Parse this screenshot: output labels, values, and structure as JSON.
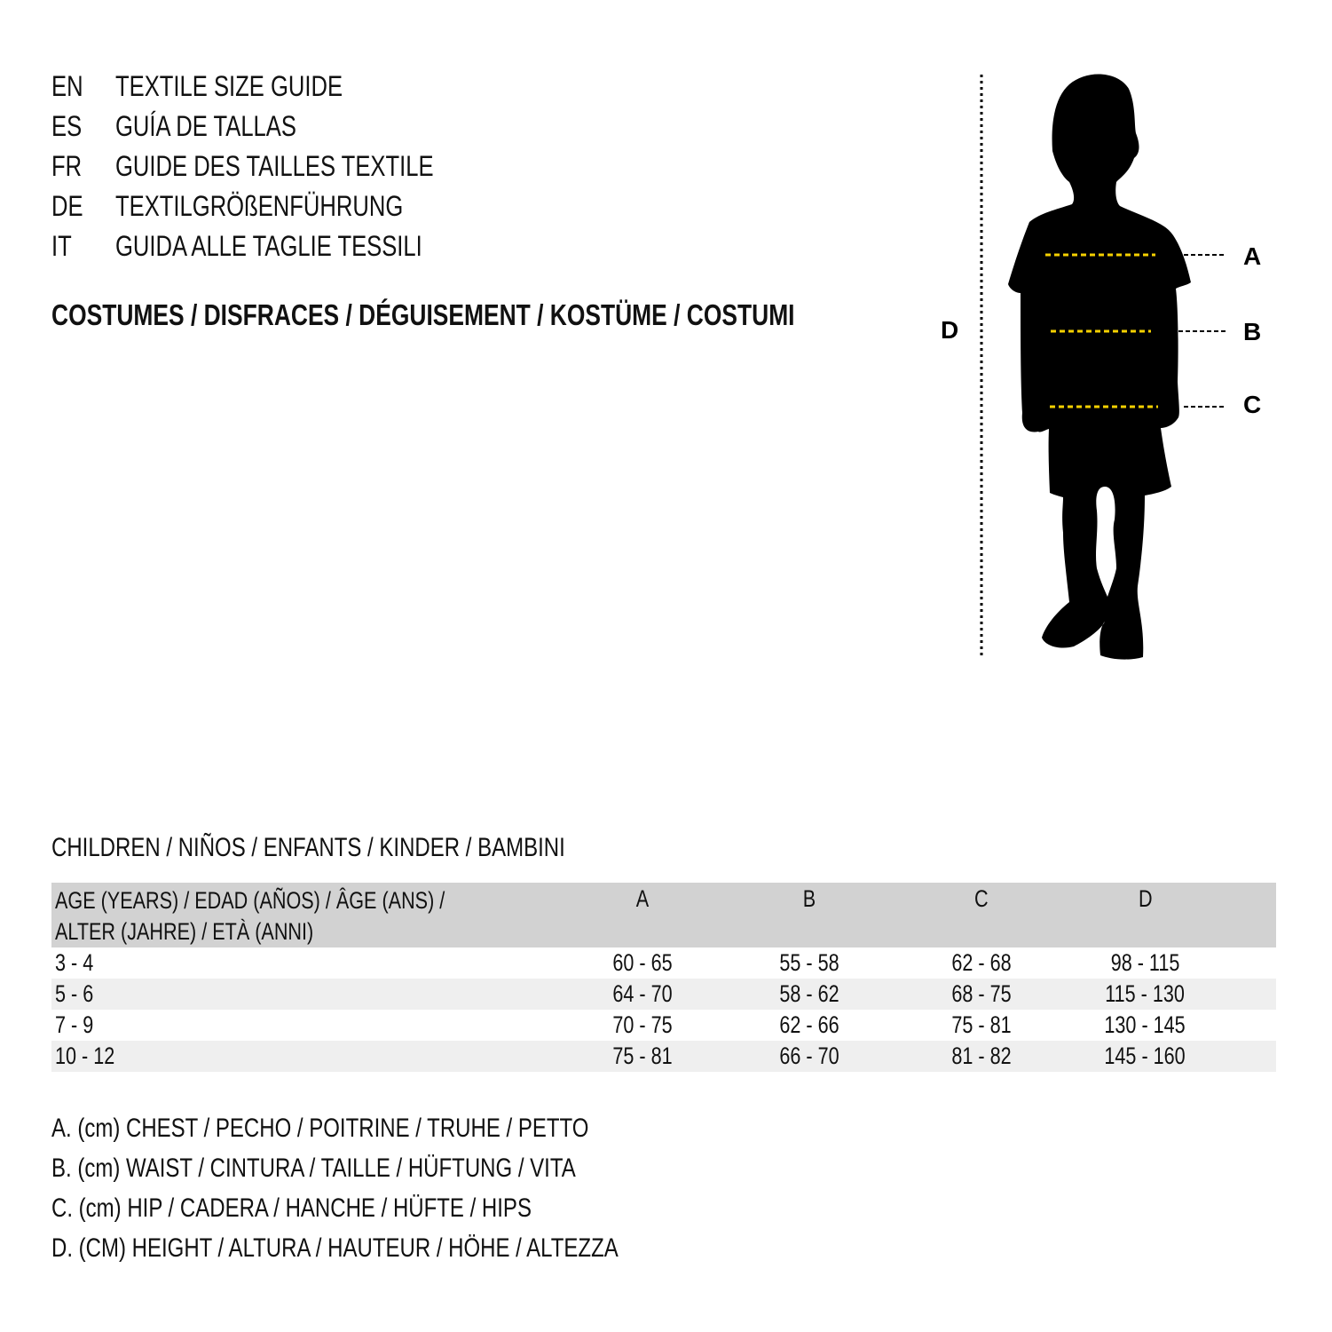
{
  "languages": [
    {
      "code": "EN",
      "title": "TEXTILE SIZE GUIDE"
    },
    {
      "code": "ES",
      "title": "GUÍA DE TALLAS"
    },
    {
      "code": "FR",
      "title": "GUIDE DES TAILLES TEXTILE"
    },
    {
      "code": "DE",
      "title": "TEXTILGRÖßENFÜHRUNG"
    },
    {
      "code": "IT",
      "title": "GUIDA ALLE TAGLIE TESSILI"
    }
  ],
  "category": "COSTUMES / DISFRACES / DÉGUISEMENT / KOSTÜME / COSTUMI",
  "diagram": {
    "labels": {
      "a": "A",
      "b": "B",
      "c": "C",
      "d": "D"
    },
    "silhouette_color": "#000000",
    "measure_line_color": "#f5d000"
  },
  "section_title": "CHILDREN / NIÑOS / ENFANTS / KINDER / BAMBINI",
  "table": {
    "headers": {
      "age_line1": "AGE (YEARS) / EDAD (AÑOS) / ÂGE (ANS) /",
      "age_line2": "ALTER (JAHRE) / ETÀ (ANNI)",
      "a": "A",
      "b": "B",
      "c": "C",
      "d": "D"
    },
    "rows": [
      {
        "age": "3 - 4",
        "a": "60 - 65",
        "b": "55 - 58",
        "c": "62 - 68",
        "d": "98 - 115"
      },
      {
        "age": "5 - 6",
        "a": "64 - 70",
        "b": "58 - 62",
        "c": "68 - 75",
        "d": "115 - 130"
      },
      {
        "age": "7 - 9",
        "a": "70 - 75",
        "b": "62 - 66",
        "c": "75 - 81",
        "d": "130 - 145"
      },
      {
        "age": "10 - 12",
        "a": "75 - 81",
        "b": "66 - 70",
        "c": "81 - 82",
        "d": "145 - 160"
      }
    ]
  },
  "legend": [
    "A. (cm) CHEST / PECHO / POITRINE / TRUHE / PETTO",
    "B. (cm) WAIST / CINTURA / TAILLE / HÜFTUNG / VITA",
    "C. (cm) HIP / CADERA / HANCHE / HÜFTE / HIPS",
    "D. (CM) HEIGHT / ALTURA / HAUTEUR / HÖHE / ALTEZZA"
  ]
}
